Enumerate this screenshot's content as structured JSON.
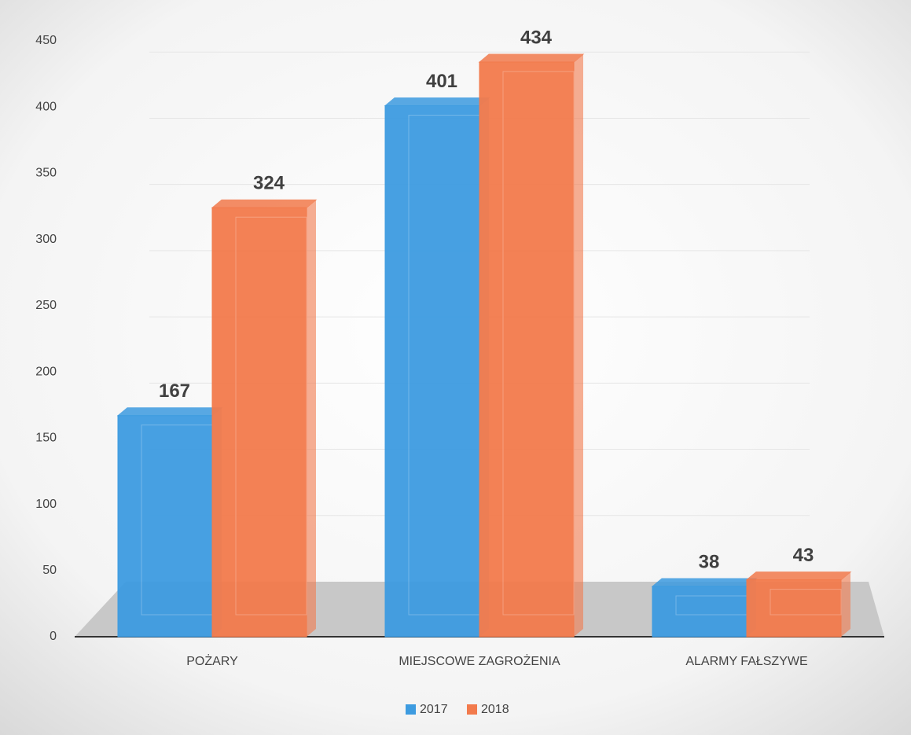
{
  "chart_data": {
    "type": "bar",
    "categories": [
      "POŻARY",
      "MIEJSCOWE ZAGROŻENIA",
      "ALARMY FAŁSZYWE"
    ],
    "series": [
      {
        "name": "2017",
        "color": "#3d9be0",
        "values": [
          167,
          401,
          38
        ]
      },
      {
        "name": "2018",
        "color": "#f27a4c",
        "values": [
          324,
          434,
          43
        ]
      }
    ],
    "ylim": [
      0,
      450
    ],
    "yticks": [
      0,
      50,
      100,
      150,
      200,
      250,
      300,
      350,
      400,
      450
    ],
    "grid": true,
    "legend": "bottom"
  }
}
